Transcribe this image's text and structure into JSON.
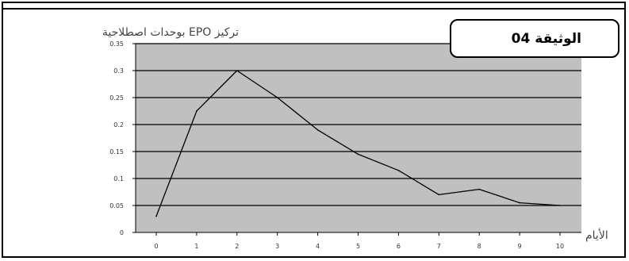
{
  "document_label": "الوثيقة 04",
  "colors": {
    "plot_background": "#c0c0c0",
    "gridline": "#000000",
    "series_line": "#000000"
  },
  "chart_data": {
    "type": "line",
    "title": "",
    "ylabel": "تركيز EPO بوحدات اصطلاحية",
    "xlabel": "الأيام",
    "x": [
      0,
      1,
      2,
      3,
      4,
      5,
      6,
      7,
      8,
      9,
      10
    ],
    "x_tick_labels": [
      "0",
      "1",
      "2",
      "3",
      "4",
      "5",
      "6",
      "7",
      "8",
      "9",
      "10"
    ],
    "y_tick_labels": [
      "0",
      "0.05",
      "0.1",
      "0.15",
      "0.2",
      "0.25",
      "0.3",
      "0.35"
    ],
    "ylim": [
      0,
      0.35
    ],
    "grid": true,
    "legend": "none",
    "series": [
      {
        "values": [
          0.03,
          0.225,
          0.3,
          0.25,
          0.19,
          0.145,
          0.115,
          0.07,
          0.08,
          0.055,
          0.05
        ]
      }
    ]
  }
}
